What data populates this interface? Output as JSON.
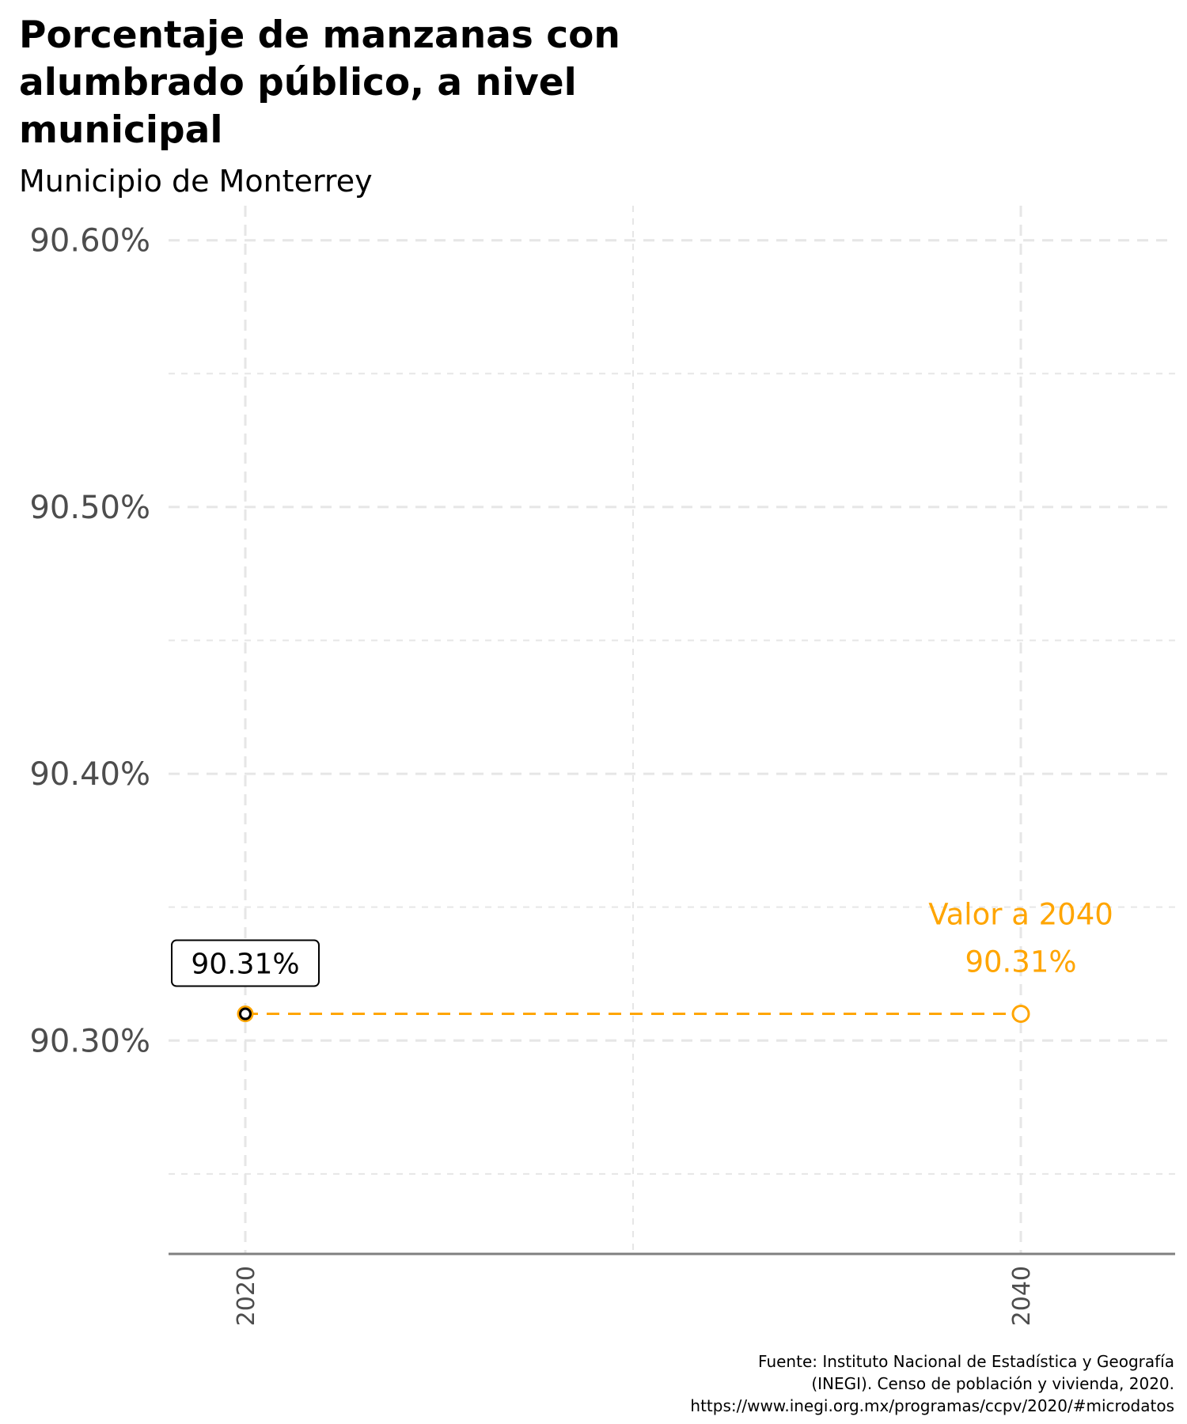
{
  "colors": {
    "accent": "#FFA500",
    "axis_text": "#4d4d4d",
    "grid": "#e6e6e6",
    "axis_line": "#808080",
    "text": "#000000"
  },
  "chart_data": {
    "type": "line",
    "title_lines": [
      "Porcentaje de manzanas con",
      "alumbrado público, a nivel",
      "municipal"
    ],
    "subtitle": "Municipio de Monterrey",
    "x": [
      2020,
      2040
    ],
    "x_tick_labels": [
      "2020",
      "2040"
    ],
    "series": [
      {
        "values": [
          90.31,
          90.31
        ],
        "color": "#FFA500",
        "line_style": "dashed"
      }
    ],
    "y_tick_labels": [
      "90.30%",
      "90.40%",
      "90.50%",
      "90.60%"
    ],
    "y_ticks": [
      90.3,
      90.4,
      90.5,
      90.6
    ],
    "ylim": [
      90.22,
      90.61
    ],
    "xlim": [
      2020,
      2040
    ],
    "grid": true,
    "annotations": {
      "start_label": "90.31%",
      "end_label_title": "Valor a 2040",
      "end_label_value": "90.31%"
    },
    "caption_lines": [
      "Fuente: Instituto Nacional de Estadística y Geografía",
      "(INEGI). Censo de población y vivienda, 2020.",
      "https://www.inegi.org.mx/programas/ccpv/2020/#microdatos"
    ]
  }
}
